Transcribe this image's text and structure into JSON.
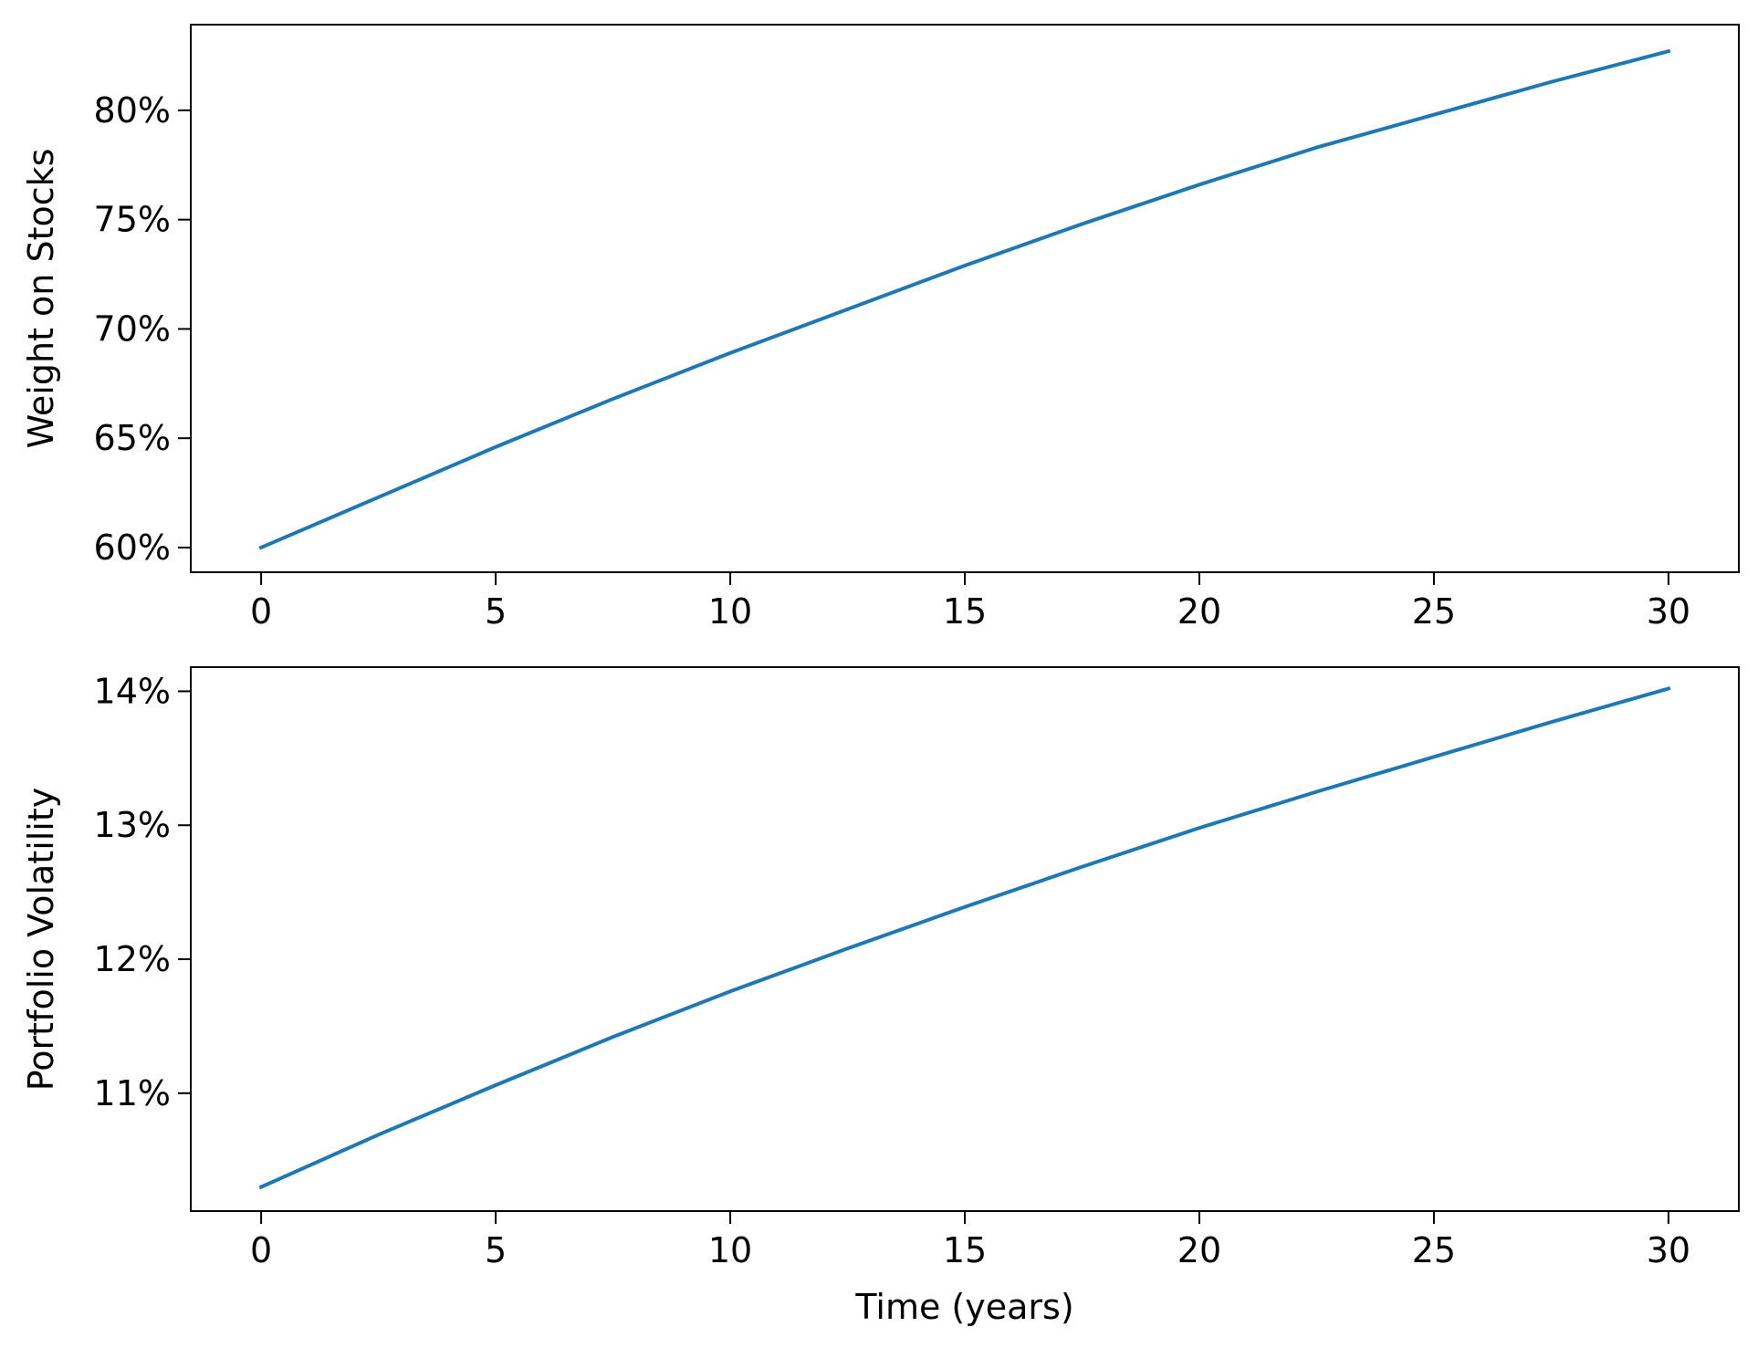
{
  "chart_data": [
    {
      "type": "line",
      "ylabel": "Weight on Stocks",
      "x": [
        0,
        2.5,
        5,
        7.5,
        10,
        12.5,
        15,
        17.5,
        20,
        22.5,
        25,
        27.5,
        30
      ],
      "values": [
        60,
        62.3,
        64.6,
        66.8,
        68.9,
        70.9,
        72.9,
        74.8,
        76.6,
        78.3,
        79.8,
        81.3,
        82.7
      ],
      "color": "#1f77b4",
      "xlim": [
        -1.5,
        31.5
      ],
      "xticks": [
        0,
        5,
        10,
        15,
        20,
        25,
        30
      ],
      "ylim": [
        58.87,
        83.92
      ],
      "yticks": [
        {
          "value": 60,
          "label": "60%"
        },
        {
          "value": 65,
          "label": "65%"
        },
        {
          "value": 70,
          "label": "70%"
        },
        {
          "value": 75,
          "label": "75%"
        },
        {
          "value": 80,
          "label": "80%"
        }
      ]
    },
    {
      "type": "line",
      "ylabel": "Portfolio Volatility",
      "xlabel": "Time (years)",
      "x": [
        0,
        2.5,
        5,
        7.5,
        10,
        12.5,
        15,
        17.5,
        20,
        22.5,
        25,
        27.5,
        30
      ],
      "values": [
        10.3,
        10.69,
        11.06,
        11.42,
        11.76,
        12.08,
        12.39,
        12.69,
        12.98,
        13.25,
        13.51,
        13.77,
        14.02
      ],
      "color": "#1f77b4",
      "xlim": [
        -1.5,
        31.5
      ],
      "xticks": [
        0,
        5,
        10,
        15,
        20,
        25,
        30
      ],
      "ylim": [
        10.12,
        14.18
      ],
      "yticks": [
        {
          "value": 11,
          "label": "11%"
        },
        {
          "value": 12,
          "label": "12%"
        },
        {
          "value": 13,
          "label": "13%"
        },
        {
          "value": 14,
          "label": "14%"
        }
      ]
    }
  ]
}
